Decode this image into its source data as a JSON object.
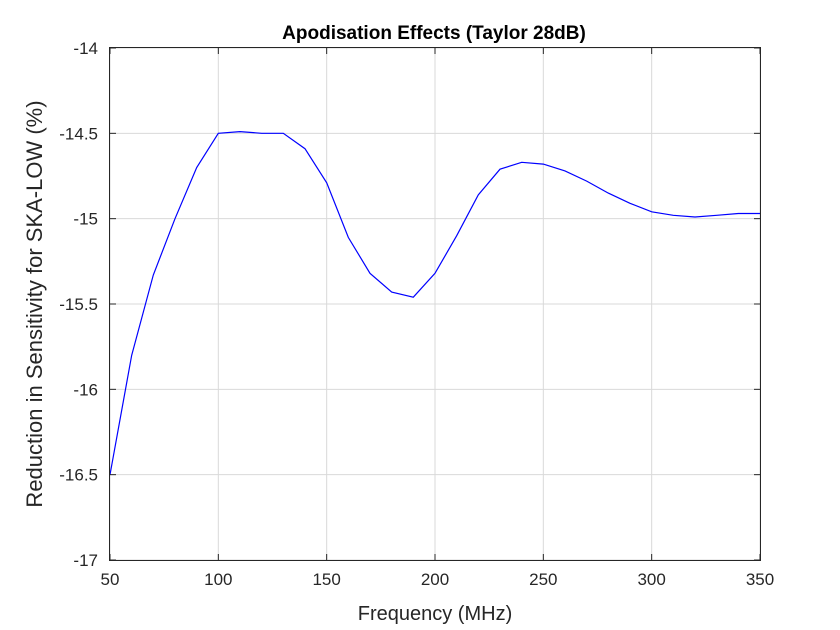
{
  "chart_data": {
    "type": "line",
    "title": "Apodisation Effects (Taylor 28dB)",
    "xlabel": "Frequency (MHz)",
    "ylabel": "Reduction in Sensitivity for SKA-LOW (%)",
    "xlim": [
      50,
      350
    ],
    "ylim": [
      -17,
      -14
    ],
    "xticks": [
      50,
      100,
      150,
      200,
      250,
      300,
      350
    ],
    "yticks": [
      -17,
      -16.5,
      -16,
      -15.5,
      -15,
      -14.5,
      -14
    ],
    "grid": true,
    "series": [
      {
        "color": "#0000ff",
        "x": [
          50,
          60,
          70,
          80,
          90,
          100,
          110,
          120,
          130,
          140,
          150,
          160,
          170,
          180,
          190,
          200,
          210,
          220,
          230,
          240,
          250,
          260,
          270,
          280,
          290,
          300,
          310,
          320,
          330,
          340,
          350
        ],
        "y": [
          -16.5,
          -15.8,
          -15.33,
          -15.0,
          -14.7,
          -14.5,
          -14.49,
          -14.5,
          -14.5,
          -14.59,
          -14.79,
          -15.11,
          -15.32,
          -15.43,
          -15.46,
          -15.32,
          -15.1,
          -14.86,
          -14.71,
          -14.67,
          -14.68,
          -14.72,
          -14.78,
          -14.85,
          -14.91,
          -14.96,
          -14.98,
          -14.99,
          -14.98,
          -14.97,
          -14.97
        ]
      }
    ]
  }
}
